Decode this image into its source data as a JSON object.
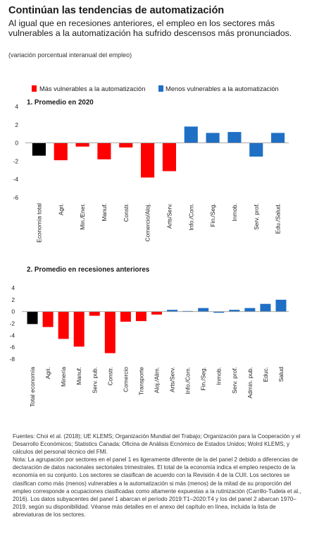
{
  "header": {
    "title": "Continúan las tendencias de automatización",
    "subtitle": "Al igual que en recesiones anteriores, el empleo en los sectores más vulnerables a la automatización ha sufrido descensos más pronunciados.",
    "units": "(variación porcentual interanual del empleo)"
  },
  "legend": [
    {
      "label": "Más vulnerables a la automatización",
      "color": "#ff0000"
    },
    {
      "label": "Menos vulnerables a la automatización",
      "color": "#1f6fc5"
    }
  ],
  "colors": {
    "red": "#ff0000",
    "blue": "#1f6fc5",
    "black": "#000000"
  },
  "chart_data": [
    {
      "type": "bar",
      "title": "1. Promedio en 2020",
      "ylim": [
        -6,
        4
      ],
      "yticks": [
        4,
        2,
        0,
        -2,
        -4,
        -6
      ],
      "categories": [
        "Economía total",
        "Agri.",
        "Min./Ener.",
        "Manuf.",
        "Constr.",
        "Comercio/Aloj.",
        "Arts/Serv.",
        "Info./Com.",
        "Fin./Seg.",
        "Inmob.",
        "Serv. prof.",
        "Edu./Salud."
      ],
      "values": [
        -1.4,
        -1.9,
        -0.4,
        -1.8,
        -0.5,
        -3.8,
        -3.1,
        1.8,
        1.1,
        1.2,
        -1.5,
        1.1
      ],
      "groups": [
        "total",
        "more",
        "more",
        "more",
        "more",
        "more",
        "more",
        "less",
        "less",
        "less",
        "less",
        "less"
      ]
    },
    {
      "type": "bar",
      "title": "2. Promedio en recesiones anteriores",
      "ylim": [
        -8,
        4
      ],
      "yticks": [
        4,
        2,
        0,
        -2,
        -4,
        -6,
        -8
      ],
      "categories": [
        "Total economía",
        "Agri.",
        "Minería",
        "Manuf.",
        "Serv. pub.",
        "Constr.",
        "Comercio",
        "Transporte",
        "Aloj./Alim.",
        "Arts/Serv.",
        "Info./Com.",
        "Fin./Seg.",
        "Inmob.",
        "Serv. prof.",
        "Admin. pub.",
        "Educ.",
        "Salud"
      ],
      "values": [
        -2.1,
        -2.6,
        -4.6,
        -5.9,
        -0.7,
        -7.0,
        -1.7,
        -1.6,
        -0.5,
        0.3,
        0.1,
        0.6,
        -0.2,
        0.3,
        0.6,
        1.3,
        2.0
      ],
      "groups": [
        "total",
        "more",
        "more",
        "more",
        "more",
        "more",
        "more",
        "more",
        "more",
        "less",
        "less",
        "less",
        "less",
        "less",
        "less",
        "less",
        "less"
      ]
    }
  ],
  "footer": {
    "sources": "Fuentes: Choi et al. (2018); UE KLEMS; Organización Mundial del Trabajo; Organización para la Cooperación y el Desarrollo Económicos; Statistics Canada; Oficina de Análisis Ecnómico de Estados Unidos; Wolrd KLEMS, y cálculos del personal técnico del FMI.",
    "note": "Nota: La agrupación por sectores en el panel 1 es ligeramente diferente de la del panel 2 debido a diferencias de declaración de datos nacionales sectoriales trimestrales. El total de la economía indica el empleo respecto de la economía en su conjunto. Los sectores se clasifican de acuerdo con la Revisión 4 de la CUII. Los sectores se clasifican como más (menos) vulnerables a la automatización si más (menos) de la mitad de su proporción del empleo corresponde a ocupaciones clasificadas como altamente expuestas a la rutinización (Carrillo-Tudela et al., 2016). Los datos subyacentes del panel 1 abarcan el período 2019:T1–2020:T4 y los del panel 2 abarcan 1970–2019, según su disponibilidad. Véanse más detalles en el anexo del capítulo en línea, incluida la lista de abreviaturas de los sectores."
  }
}
